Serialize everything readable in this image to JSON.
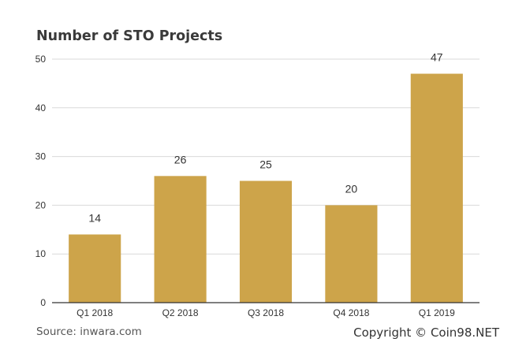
{
  "chart_data": {
    "type": "bar",
    "title": "Number of STO Projects",
    "categories": [
      "Q1 2018",
      "Q2 2018",
      "Q3 2018",
      "Q4 2018",
      "Q1 2019"
    ],
    "values": [
      14,
      26,
      25,
      20,
      47
    ],
    "data_labels": [
      "14",
      "26",
      "25",
      "20",
      "47"
    ],
    "xlabel": "",
    "ylabel": "",
    "ylim": [
      0,
      50
    ],
    "yticks": [
      0,
      10,
      20,
      30,
      40,
      50
    ],
    "ytick_labels": [
      "0",
      "10",
      "20",
      "30",
      "40",
      "50"
    ],
    "grid": true,
    "legend": "none",
    "colors": {
      "bar": "#cda44a",
      "grid": "#d9d9d9",
      "axis": "#333333",
      "text": "#333333"
    }
  },
  "footer": {
    "source": "Source: inwara.com",
    "copyright": "Copyright © Coin98.NET"
  }
}
